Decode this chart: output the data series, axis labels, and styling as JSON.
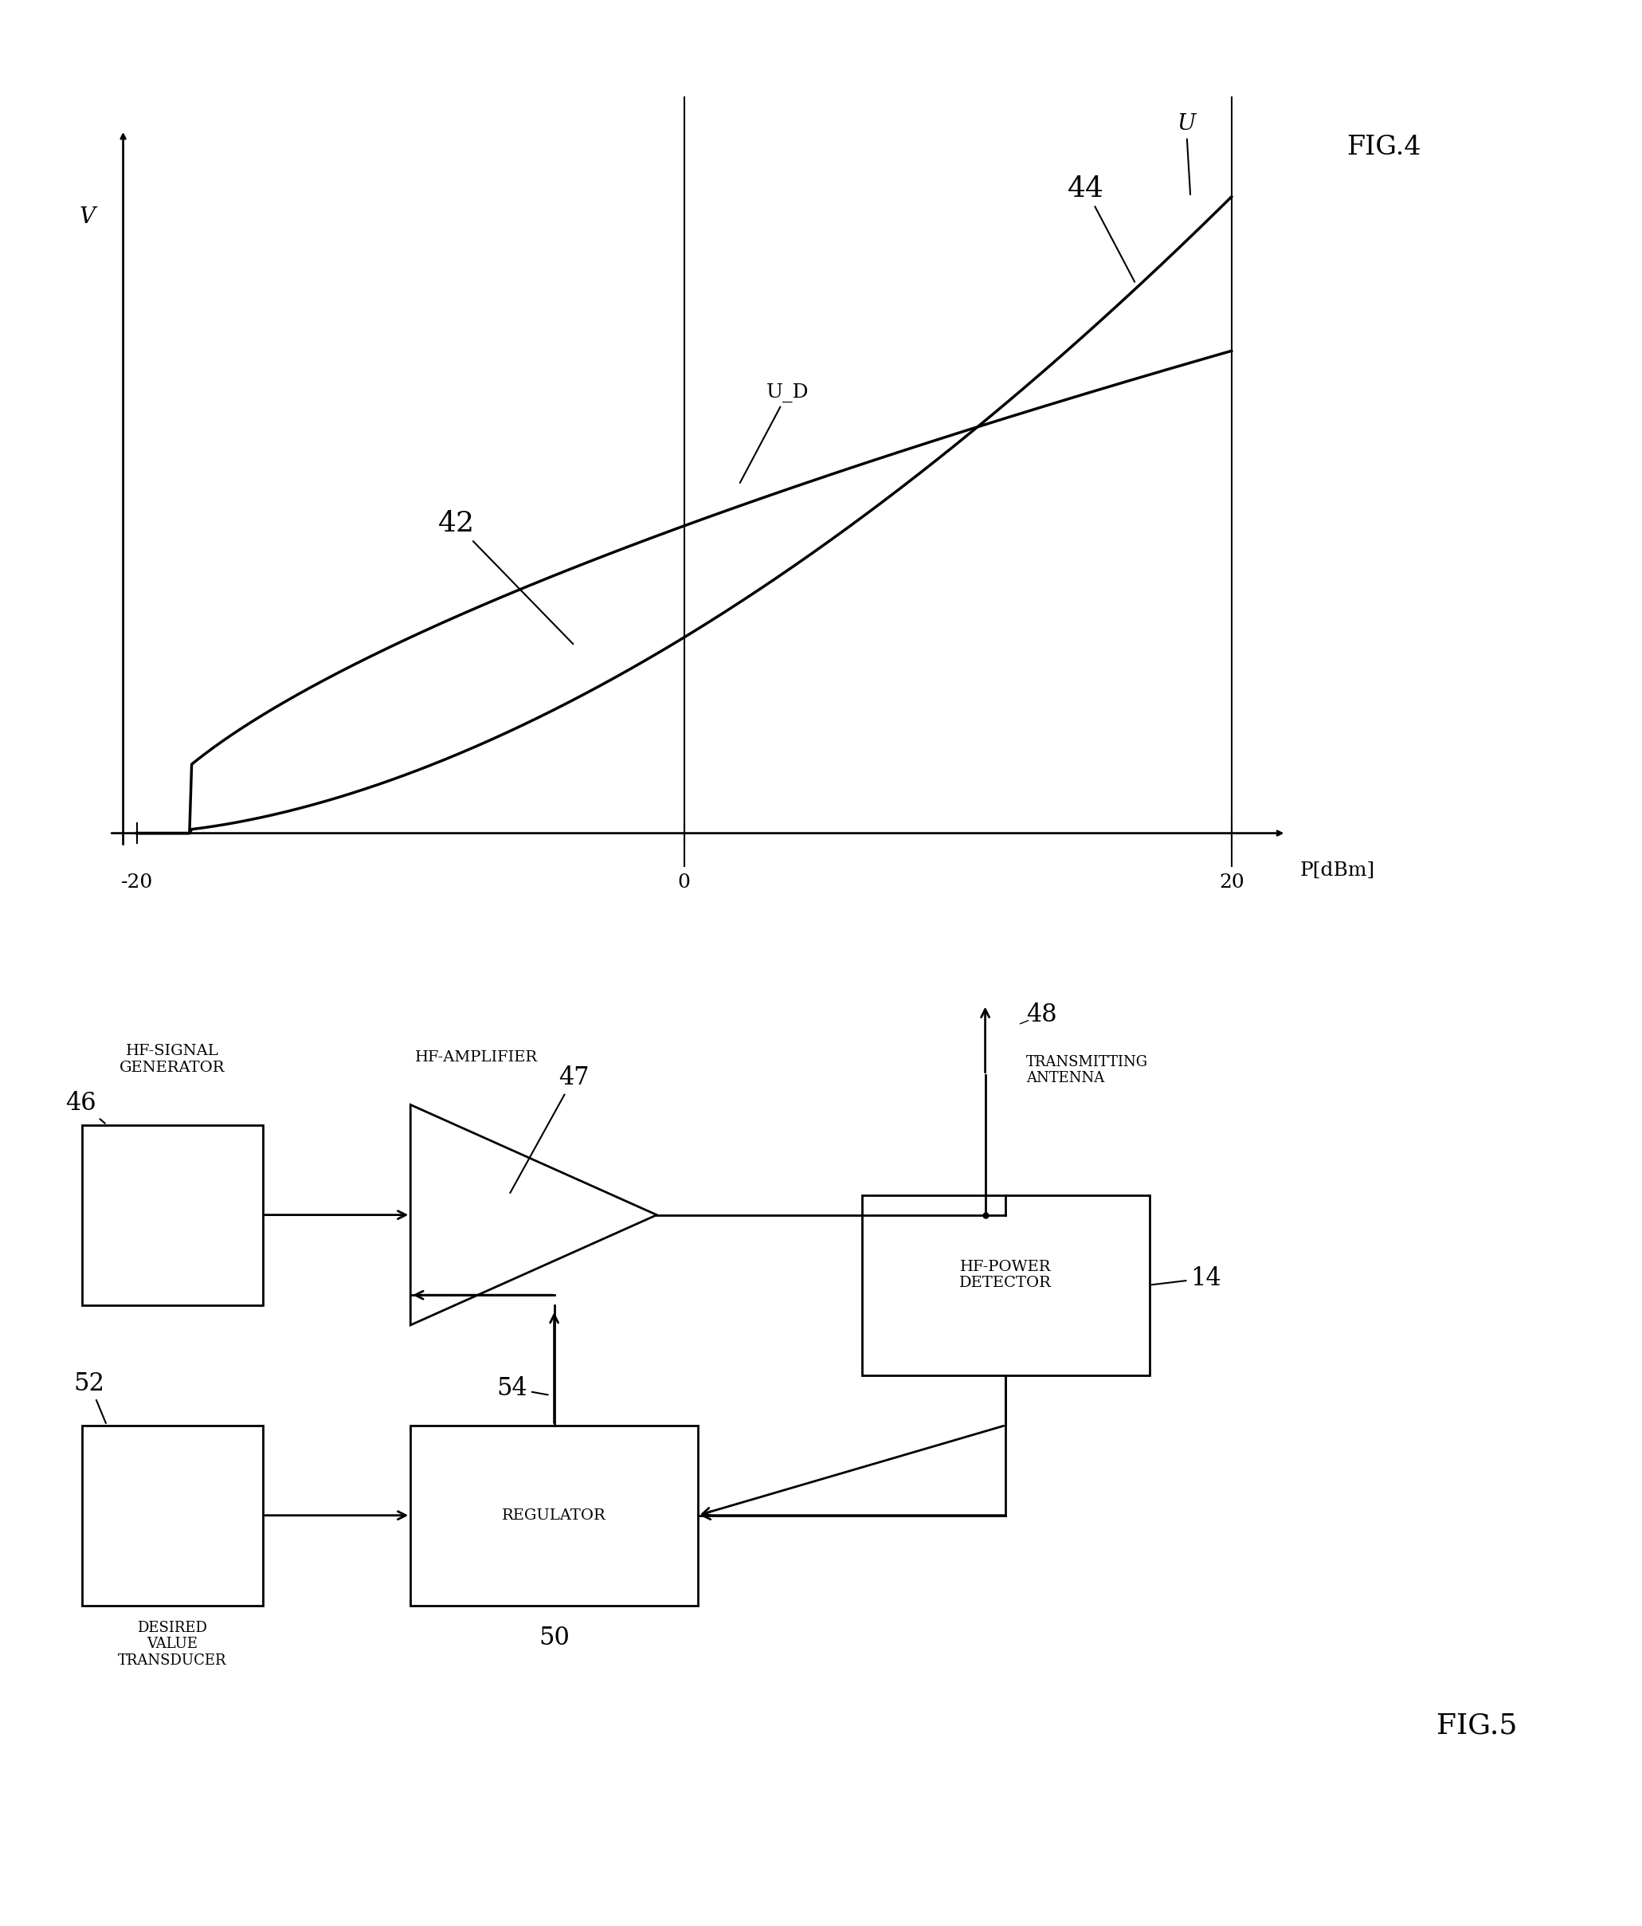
{
  "fig4": {
    "title": "FIG.4",
    "xlabel": "P[dBm]",
    "ylabel": "V",
    "x_min": -20,
    "x_max": 20,
    "x_ticks": [
      -20,
      0,
      20
    ],
    "vlines": [
      0,
      20
    ],
    "curve42_label": "42",
    "curve44_label": "44",
    "curveUD_label": "U_D",
    "curveU_label": "U"
  },
  "fig5": {
    "title": "FIG.5",
    "blocks": {
      "generator": {
        "label": "HF-SIGNAL\nGENERATOR",
        "number": "46"
      },
      "amplifier": {
        "label": "HF-AMPLIFIER\n47"
      },
      "antenna": {
        "label": "48\nTRANSMITTING\nANTENNA"
      },
      "detector": {
        "label": "HF-POWER\nDETECTOR",
        "number": "14"
      },
      "regulator": {
        "label": "REGULATOR",
        "number": "50"
      },
      "desired": {
        "label": "DESIRED\nVALUE\nTRANSDUCER",
        "number": "52"
      },
      "line54": "54"
    }
  },
  "bg_color": "#ffffff",
  "line_color": "#000000",
  "font_size_label": 18,
  "font_size_number": 22,
  "font_size_title": 22
}
